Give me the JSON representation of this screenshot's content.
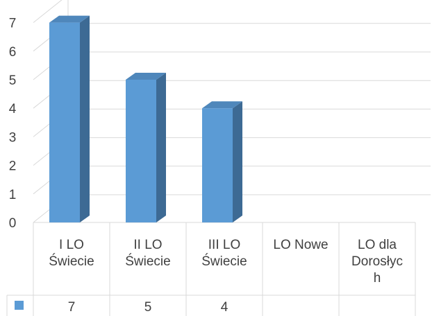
{
  "chart_data": {
    "type": "bar",
    "style": "3d-column-with-data-table",
    "categories": [
      [
        "I LO",
        "Świecie"
      ],
      [
        "II LO",
        "Świecie"
      ],
      [
        "III LO",
        "Świecie"
      ],
      [
        "LO Nowe"
      ],
      [
        "LO dla",
        "Dorosłyc",
        "h"
      ]
    ],
    "values": [
      7,
      5,
      4,
      null,
      null
    ],
    "table_values": [
      "7",
      "5",
      "4",
      "",
      ""
    ],
    "y_ticks": [
      "0",
      "1",
      "2",
      "3",
      "4",
      "5",
      "6",
      "7"
    ],
    "ylim": [
      0,
      7
    ],
    "grid": true,
    "legend": "data-table-left",
    "colors": {
      "bar_front": "#5b9bd5",
      "bar_side": "#3d6a94",
      "bar_top": "#4f87bb",
      "grid": "#d9d9d9",
      "legend_key": "#5b9bd5"
    }
  }
}
